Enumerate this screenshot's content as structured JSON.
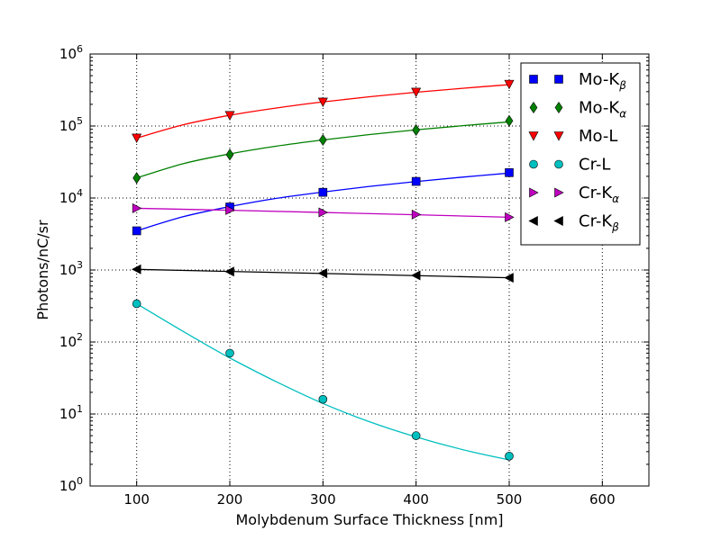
{
  "chart_data": {
    "type": "line",
    "xlabel": "Molybdenum Surface Thickness [nm]",
    "ylabel": "Photons/nC/sr",
    "xlim": [
      50,
      650
    ],
    "ylim": [
      1,
      1000000
    ],
    "yscale": "log",
    "grid": true,
    "legend_placement": "top-right",
    "x_ticks": [
      100,
      200,
      300,
      400,
      500,
      600
    ],
    "x_tick_labels": [
      "100",
      "200",
      "300",
      "400",
      "500",
      "600"
    ],
    "y_ticks": [
      1,
      10,
      100,
      1000,
      10000,
      100000,
      1000000
    ],
    "y_tick_labels": [
      {
        "base": "10",
        "exp": "0"
      },
      {
        "base": "10",
        "exp": "1"
      },
      {
        "base": "10",
        "exp": "2"
      },
      {
        "base": "10",
        "exp": "3"
      },
      {
        "base": "10",
        "exp": "4"
      },
      {
        "base": "10",
        "exp": "5"
      },
      {
        "base": "10",
        "exp": "6"
      }
    ],
    "series": [
      {
        "name": "Mo-Kβ",
        "legend_base": "Mo-K",
        "legend_sub": "β",
        "marker": "square",
        "color": "#0000ff",
        "x": [
          100,
          200,
          300,
          400,
          500
        ],
        "y": [
          3500,
          7500,
          12000,
          17000,
          22500
        ],
        "fit": [
          [
            100,
            3500
          ],
          [
            150,
            5500
          ],
          [
            200,
            7600
          ],
          [
            250,
            9900
          ],
          [
            300,
            12100
          ],
          [
            350,
            14500
          ],
          [
            400,
            16900
          ],
          [
            450,
            19500
          ],
          [
            500,
            22200
          ]
        ]
      },
      {
        "name": "Mo-Kα",
        "legend_base": "Mo-K",
        "legend_sub": "α",
        "marker": "diamond",
        "color": "#008000",
        "x": [
          100,
          200,
          300,
          400,
          500
        ],
        "y": [
          19000,
          40000,
          64000,
          88000,
          118000
        ],
        "fit": [
          [
            100,
            19000
          ],
          [
            150,
            30000
          ],
          [
            200,
            41000
          ],
          [
            250,
            52500
          ],
          [
            300,
            64000
          ],
          [
            350,
            76000
          ],
          [
            400,
            88500
          ],
          [
            450,
            101000
          ],
          [
            500,
            114000
          ]
        ]
      },
      {
        "name": "Mo-L",
        "legend_base": "Mo-L",
        "legend_sub": "",
        "marker": "triangle-down",
        "color": "#ff0000",
        "x": [
          100,
          200,
          300,
          400,
          500
        ],
        "y": [
          68000,
          140000,
          215000,
          295000,
          380000
        ],
        "fit": [
          [
            100,
            68000
          ],
          [
            150,
            104000
          ],
          [
            200,
            141000
          ],
          [
            250,
            178000
          ],
          [
            300,
            216000
          ],
          [
            350,
            255000
          ],
          [
            400,
            294000
          ],
          [
            450,
            334000
          ],
          [
            500,
            375000
          ]
        ]
      },
      {
        "name": "Cr-L",
        "legend_base": "Cr-L",
        "legend_sub": "",
        "marker": "circle",
        "color": "#00bfbf",
        "x": [
          100,
          200,
          300,
          400,
          500
        ],
        "y": [
          340,
          70,
          16,
          5,
          2.6
        ],
        "fit": [
          [
            100,
            340
          ],
          [
            125,
            218
          ],
          [
            150,
            140
          ],
          [
            175,
            91
          ],
          [
            200,
            60
          ],
          [
            250,
            28
          ],
          [
            300,
            14
          ],
          [
            350,
            7.8
          ],
          [
            400,
            4.8
          ],
          [
            450,
            3.2
          ],
          [
            500,
            2.3
          ]
        ]
      },
      {
        "name": "Cr-Kα",
        "legend_base": "Cr-K",
        "legend_sub": "α",
        "marker": "triangle-right",
        "color": "#bf00bf",
        "x": [
          100,
          200,
          300,
          400,
          500
        ],
        "y": [
          7200,
          6800,
          6300,
          5900,
          5400
        ],
        "fit": [
          [
            100,
            7200
          ],
          [
            200,
            6750
          ],
          [
            300,
            6300
          ],
          [
            400,
            5850
          ],
          [
            500,
            5400
          ]
        ]
      },
      {
        "name": "Cr-Kβ",
        "legend_base": "Cr-K",
        "legend_sub": "β",
        "marker": "triangle-left",
        "color": "#000000",
        "x": [
          100,
          200,
          300,
          400,
          500
        ],
        "y": [
          1020,
          950,
          900,
          840,
          780
        ],
        "fit": [
          [
            100,
            1020
          ],
          [
            200,
            955
          ],
          [
            300,
            895
          ],
          [
            400,
            835
          ],
          [
            500,
            780
          ]
        ]
      }
    ]
  }
}
